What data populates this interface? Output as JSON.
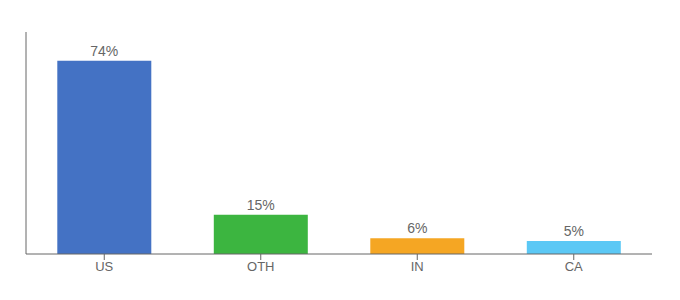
{
  "chart_data": {
    "type": "bar",
    "categories": [
      "US",
      "OTH",
      "IN",
      "CA"
    ],
    "values": [
      74,
      15,
      6,
      5
    ],
    "value_labels": [
      "74%",
      "15%",
      "6%",
      "5%"
    ],
    "colors": [
      "#4472c4",
      "#3cb540",
      "#f5a623",
      "#5bc8f5"
    ],
    "ylim": [
      0,
      85
    ],
    "data_labels": true,
    "tick_labels": "x",
    "grid": false
  }
}
